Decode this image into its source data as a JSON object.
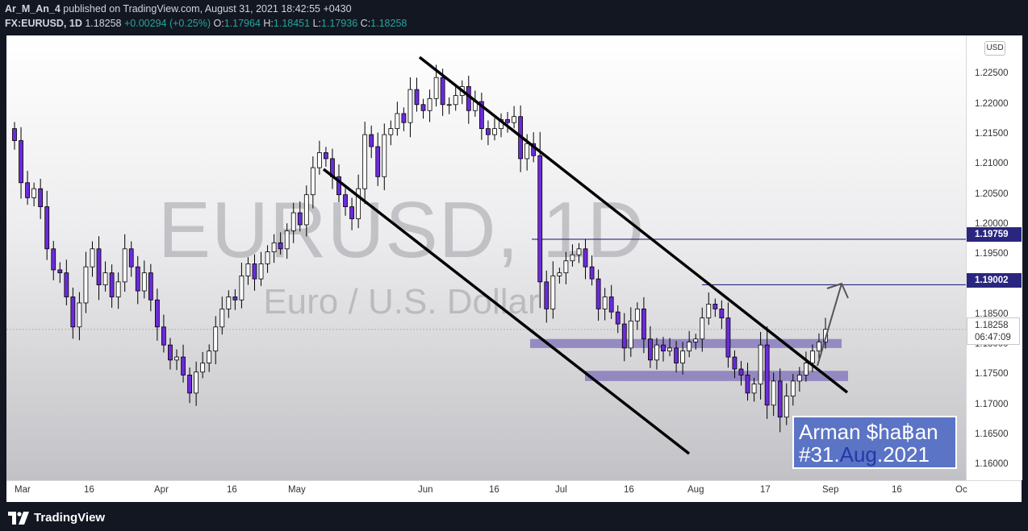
{
  "header": {
    "author": "Ar_M_An_4",
    "published": " published on TradingView.com, August 31, 2021 18:42:55 +0430",
    "symbol": "FX:EURUSD, 1D",
    "last": "1.18258",
    "change": "+0.00294 (+0.25%)",
    "o_label": "O:",
    "o": "1.17964",
    "h_label": "H:",
    "h": "1.18451",
    "l_label": "L:",
    "l": "1.17936",
    "c_label": "C:",
    "c": "1.18258"
  },
  "watermark": {
    "main": "EURUSD, 1D",
    "sub": "Euro / U.S. Dollar"
  },
  "signature": {
    "line1": "Arman $ha฿an",
    "hash": "#31.",
    "aug": "Aug",
    "year": ".2021"
  },
  "axis": {
    "currency": "USD",
    "current_price": "1.18258",
    "countdown": "06:47:09",
    "level_1": "1.19759",
    "level_2": "1.19002"
  },
  "footer": {
    "brand": "TradingView"
  },
  "colors": {
    "bull": "#ffffff",
    "bear": "#6c2bd9",
    "zone": "#7d6fb8",
    "level_line": "#2a2680",
    "signature_bg": "#5b74c5"
  },
  "chart_data": {
    "type": "candlestick",
    "title": "EURUSD, 1D",
    "subtitle": "Euro / U.S. Dollar",
    "ylim": [
      1.1575,
      1.2315
    ],
    "y_ticks": [
      "1.22500",
      "1.22000",
      "1.21500",
      "1.21000",
      "1.20500",
      "1.20000",
      "1.19500",
      "1.19000",
      "1.18500",
      "1.18000",
      "1.17500",
      "1.17000",
      "1.16500",
      "1.16000"
    ],
    "x_ticks": [
      "Mar",
      "16",
      "Apr",
      "16",
      "May",
      "Jun",
      "16",
      "Jul",
      "16",
      "Aug",
      "17",
      "Sep",
      "16",
      "Oc"
    ],
    "levels": [
      1.19759,
      1.19002
    ],
    "zones": [
      [
        1.1795,
        1.181
      ],
      [
        1.174,
        1.1757
      ]
    ],
    "close_series": [
      1.214,
      1.207,
      1.2045,
      1.206,
      1.203,
      1.196,
      1.1925,
      1.192,
      1.188,
      1.183,
      1.187,
      1.193,
      1.196,
      1.19,
      1.192,
      1.188,
      1.1905,
      1.196,
      1.193,
      1.189,
      1.192,
      1.1875,
      1.183,
      1.18,
      1.1775,
      1.178,
      1.175,
      1.172,
      1.1755,
      1.177,
      1.179,
      1.183,
      1.186,
      1.188,
      1.1875,
      1.1915,
      1.1935,
      1.191,
      1.1935,
      1.1955,
      1.197,
      1.196,
      1.199,
      1.202,
      1.2,
      1.205,
      1.2095,
      1.212,
      1.211,
      1.208,
      1.205,
      1.203,
      1.201,
      1.206,
      1.215,
      1.213,
      1.208,
      1.215,
      1.216,
      1.2185,
      1.217,
      1.2225,
      1.22,
      1.219,
      1.221,
      1.2245,
      1.22,
      1.22,
      1.2215,
      1.223,
      1.219,
      1.2205,
      1.216,
      1.215,
      1.216,
      1.2175,
      1.217,
      1.218,
      1.211,
      1.2135,
      1.2115,
      1.1905,
      1.186,
      1.1915,
      1.192,
      1.194,
      1.195,
      1.196,
      1.193,
      1.191,
      1.186,
      1.188,
      1.1855,
      1.1835,
      1.1795,
      1.184,
      1.186,
      1.181,
      1.1775,
      1.18,
      1.179,
      1.1795,
      1.177,
      1.179,
      1.1805,
      1.181,
      1.1845,
      1.1868,
      1.186,
      1.1845,
      1.178,
      1.176,
      1.175,
      1.172,
      1.1735,
      1.18,
      1.17,
      1.174,
      1.168,
      1.1715,
      1.174,
      1.175,
      1.177,
      1.179,
      1.1805,
      1.1826
    ]
  }
}
